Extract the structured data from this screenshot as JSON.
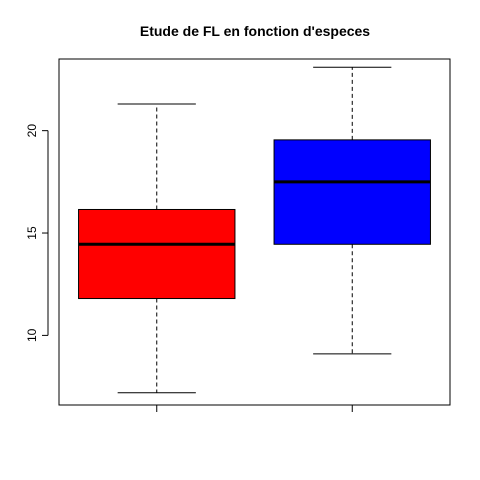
{
  "chart_data": {
    "type": "boxplot",
    "title": "Etude de FL en fonction d'especes",
    "xlabel": "",
    "ylabel": "",
    "ylim": [
      6.6,
      23.5
    ],
    "y_ticks": [
      10,
      15,
      20
    ],
    "categories": [
      "",
      ""
    ],
    "boxes": [
      {
        "min": 7.2,
        "q1": 11.8,
        "median": 14.45,
        "q3": 16.15,
        "max": 21.3,
        "fill": "#ff0000"
      },
      {
        "min": 9.1,
        "q1": 14.45,
        "median": 17.5,
        "q3": 19.55,
        "max": 23.1,
        "fill": "#0000ff"
      }
    ]
  }
}
